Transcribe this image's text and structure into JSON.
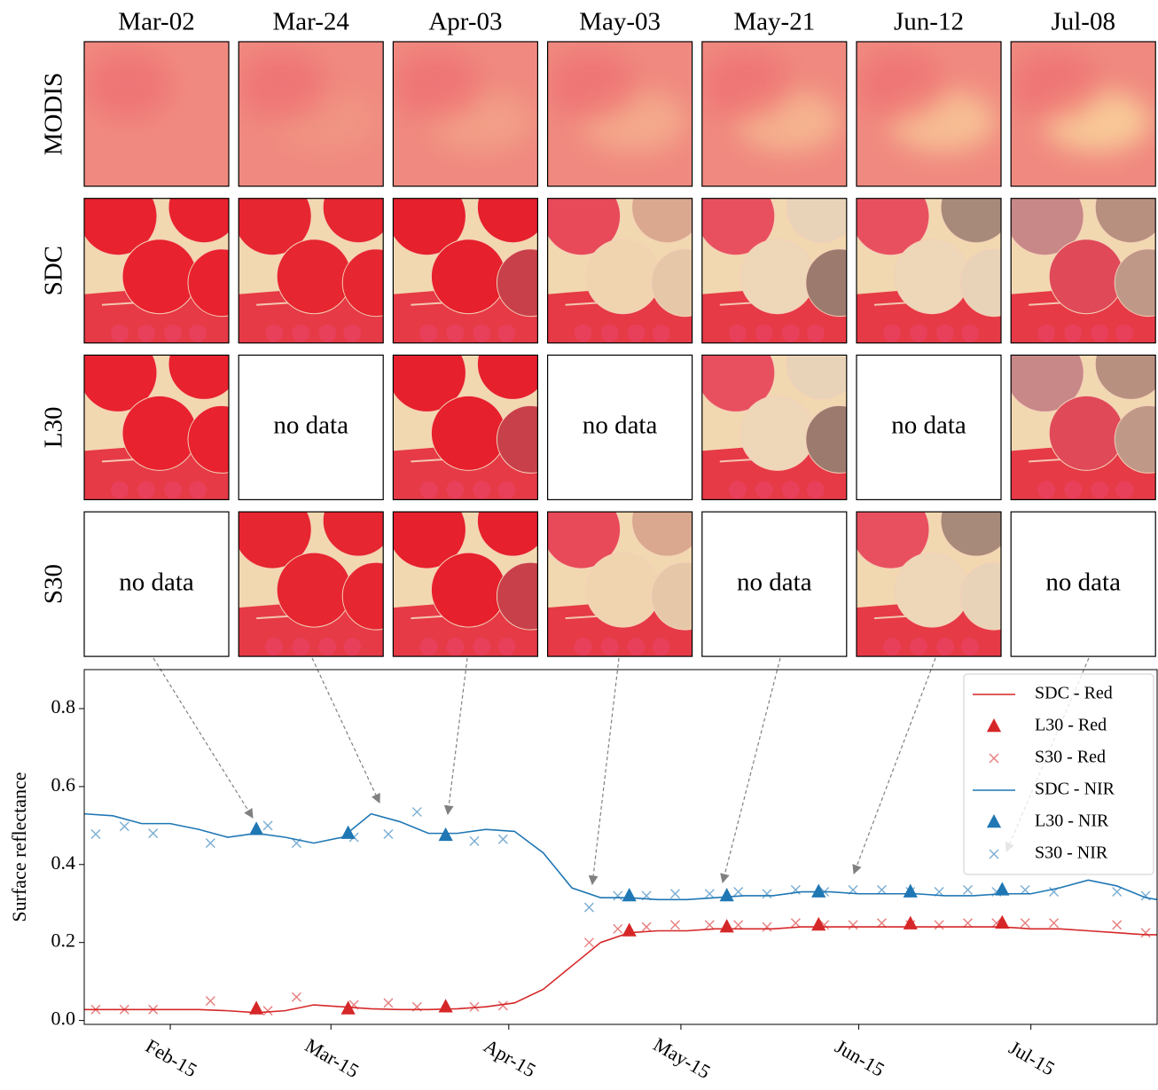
{
  "image_grid": {
    "columns": [
      "Mar-02",
      "Mar-24",
      "Apr-03",
      "May-03",
      "May-21",
      "Jun-12",
      "Jul-08"
    ],
    "rows": [
      {
        "label": "MODIS",
        "cells": [
          null,
          null,
          null,
          null,
          null,
          null,
          null
        ]
      },
      {
        "label": "SDC",
        "cells": [
          null,
          null,
          null,
          null,
          null,
          null,
          null
        ]
      },
      {
        "label": "L30",
        "cells": [
          null,
          "no data",
          null,
          "no data",
          null,
          "no data",
          null
        ]
      },
      {
        "label": "S30",
        "cells": [
          "no data",
          null,
          null,
          null,
          "no data",
          null,
          "no data"
        ]
      }
    ]
  },
  "chart_data": {
    "type": "line",
    "ylabel": "Surface reflectance",
    "xlim": [
      31,
      218
    ],
    "xticks": [
      {
        "value": 46,
        "label": "Feb-15"
      },
      {
        "value": 74,
        "label": "Mar-15"
      },
      {
        "value": 105,
        "label": "Apr-15"
      },
      {
        "value": 135,
        "label": "May-15"
      },
      {
        "value": 166,
        "label": "Jun-15"
      },
      {
        "value": 196,
        "label": "Jul-15"
      }
    ],
    "ylim": [
      -0.01,
      0.9
    ],
    "yticks": [
      {
        "value": 0,
        "label": "0.0"
      },
      0.2,
      0.4,
      0.6,
      0.8
    ],
    "grid": false,
    "legend": "upper right",
    "series": [
      {
        "name": "SDC - Red",
        "color": "#d62728",
        "style": "line",
        "x": [
          31,
          36,
          41,
          46,
          51,
          56,
          61,
          66,
          71,
          76,
          81,
          86,
          91,
          96,
          101,
          106,
          111,
          116,
          121,
          126,
          131,
          136,
          141,
          146,
          151,
          156,
          161,
          166,
          171,
          176,
          181,
          186,
          191,
          196,
          201,
          206,
          211,
          216,
          218
        ],
        "values": [
          0.028,
          0.028,
          0.028,
          0.028,
          0.028,
          0.025,
          0.02,
          0.025,
          0.04,
          0.035,
          0.03,
          0.028,
          0.028,
          0.03,
          0.035,
          0.045,
          0.08,
          0.14,
          0.2,
          0.225,
          0.23,
          0.23,
          0.235,
          0.235,
          0.235,
          0.24,
          0.24,
          0.24,
          0.24,
          0.24,
          0.24,
          0.24,
          0.24,
          0.235,
          0.235,
          0.23,
          0.225,
          0.22,
          0.22
        ]
      },
      {
        "name": "L30 - Red",
        "color": "#d62728",
        "style": "triangle",
        "x": [
          61,
          77,
          94,
          126,
          143,
          159,
          175,
          191
        ],
        "values": [
          0.03,
          0.03,
          0.035,
          0.23,
          0.24,
          0.245,
          0.248,
          0.25
        ]
      },
      {
        "name": "S30 - Red",
        "color": "#d62728",
        "style": "cross",
        "alpha": 0.6,
        "x": [
          33,
          38,
          43,
          53,
          63,
          68,
          78,
          84,
          89,
          99,
          104,
          119,
          124,
          129,
          134,
          140,
          145,
          150,
          155,
          160,
          165,
          170,
          175,
          180,
          185,
          190,
          195,
          200,
          211,
          216
        ],
        "values": [
          0.028,
          0.028,
          0.028,
          0.05,
          0.025,
          0.06,
          0.04,
          0.045,
          0.035,
          0.035,
          0.038,
          0.2,
          0.235,
          0.24,
          0.245,
          0.245,
          0.245,
          0.24,
          0.25,
          0.245,
          0.245,
          0.25,
          0.245,
          0.245,
          0.25,
          0.25,
          0.25,
          0.25,
          0.245,
          0.225
        ]
      },
      {
        "name": "SDC - NIR",
        "color": "#1f77b4",
        "style": "line",
        "x": [
          31,
          36,
          41,
          46,
          51,
          56,
          61,
          66,
          71,
          76,
          81,
          86,
          91,
          96,
          101,
          106,
          111,
          116,
          121,
          126,
          131,
          136,
          141,
          146,
          151,
          156,
          161,
          166,
          171,
          176,
          181,
          186,
          191,
          196,
          201,
          206,
          211,
          216,
          218
        ],
        "values": [
          0.53,
          0.525,
          0.505,
          0.505,
          0.49,
          0.47,
          0.48,
          0.47,
          0.455,
          0.47,
          0.53,
          0.51,
          0.48,
          0.48,
          0.49,
          0.485,
          0.43,
          0.34,
          0.315,
          0.315,
          0.31,
          0.31,
          0.315,
          0.32,
          0.32,
          0.33,
          0.33,
          0.325,
          0.325,
          0.325,
          0.32,
          0.32,
          0.325,
          0.325,
          0.34,
          0.36,
          0.345,
          0.315,
          0.31
        ]
      },
      {
        "name": "L30 - NIR",
        "color": "#1f77b4",
        "style": "triangle",
        "x": [
          61,
          77,
          94,
          126,
          143,
          159,
          175,
          191
        ],
        "values": [
          0.49,
          0.48,
          0.475,
          0.32,
          0.32,
          0.33,
          0.33,
          0.335
        ]
      },
      {
        "name": "S30 - NIR",
        "color": "#1f77b4",
        "style": "cross",
        "alpha": 0.6,
        "x": [
          33,
          38,
          43,
          53,
          63,
          68,
          78,
          84,
          89,
          99,
          104,
          119,
          124,
          129,
          134,
          140,
          145,
          150,
          155,
          160,
          165,
          170,
          175,
          180,
          185,
          190,
          195,
          200,
          211,
          216
        ],
        "values": [
          0.478,
          0.498,
          0.48,
          0.455,
          0.5,
          0.455,
          0.47,
          0.478,
          0.535,
          0.46,
          0.465,
          0.29,
          0.32,
          0.32,
          0.325,
          0.325,
          0.33,
          0.325,
          0.335,
          0.33,
          0.335,
          0.335,
          0.33,
          0.33,
          0.335,
          0.33,
          0.335,
          0.33,
          0.33,
          0.32
        ]
      }
    ]
  }
}
